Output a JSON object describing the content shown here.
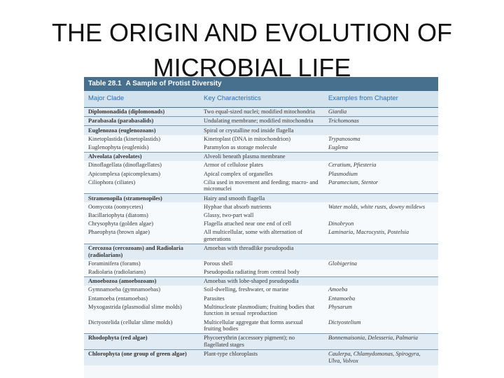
{
  "header": {
    "title_lines": [
      "THE ORIGIN AND EVOLUTION OF",
      "MICROBIAL LIFE"
    ]
  },
  "table": {
    "number": "Table 28.1",
    "caption": "A Sample of Protist Diversity",
    "columns": [
      "Major Clade",
      "Key Characteristics",
      "Examples from Chapter"
    ],
    "groups": [
      {
        "rows": [
          [
            "Diplomonadida (diplomonads)",
            "Two equal-sized nuclei; modified mitochondria",
            "Giardia"
          ]
        ]
      },
      {
        "rows": [
          [
            "Parabasala (parabasalids)",
            "Undulating membrane; modified mitochondria",
            "Trichomonas"
          ]
        ]
      },
      {
        "rows": [
          [
            "Euglenozoa (euglenozoans)",
            "Spiral or crystalline rod inside flagella"
          ],
          [
            "Kinetoplastida (kinetoplastids)",
            "Kinetoplast (DNA in mitochondrion)",
            "Trypanosoma"
          ],
          [
            "Euglenophyta (euglenids)",
            "Paramylon as storage molecule",
            "Euglena"
          ]
        ]
      },
      {
        "rows": [
          [
            "Alveolata (alveolates)",
            "Alveoli beneath plasma membrane"
          ],
          [
            "Dinoflagellata (dinoflagellates)",
            "Armor of cellulose plates",
            "Ceratium, Pfiesteria"
          ],
          [
            "Apicomplexa (apicomplexans)",
            "Apical complex of organelles",
            "Plasmodium"
          ],
          [
            "Ciliophora (ciliates)",
            "Cilia used in movement and feeding; macro- and micronuclei",
            "Paramecium, Stentor"
          ]
        ]
      },
      {
        "rows": [
          [
            "Stramenopila (stramenopiles)",
            "Hairy and smooth flagella"
          ],
          [
            "Oomycota (oomycetes)",
            "Hyphae that absorb nutrients",
            "Water molds, white rusts, downy mildews"
          ],
          [
            "Bacillariophyta (diatoms)",
            "Glassy, two-part wall"
          ],
          [
            "Chrysophyta (golden algae)",
            "Flagella attached near one end of cell",
            "Dinobryon"
          ],
          [
            "Phaeophyta (brown algae)",
            "All multicellular, some with alternation of generations",
            "Laminaria, Macrocystis, Postelsia"
          ]
        ]
      },
      {
        "rows": [
          [
            "Cercozoa (cercozoans) and Radiolaria (radiolarians)",
            "Amoebas with threadlike pseudopodia"
          ],
          [
            "Foraminifera (forams)",
            "Porous shell",
            "Globigerina"
          ],
          [
            "Radiolaria (radiolarians)",
            "Pseudopodia radiating from central body"
          ]
        ]
      },
      {
        "rows": [
          [
            "Amoebozoa (amoebozoans)",
            "Amoebas with lobe-shaped pseudopodia"
          ],
          [
            "Gymnamoeba (gymnamoebas)",
            "Soil-dwelling, freshwater, or marine",
            "Amoeba"
          ],
          [
            "Entamoeba (entamoebas)",
            "Parasites",
            "Entamoeba"
          ],
          [
            "Myxogastrida (plasmodial slime molds)",
            "Multinucleate plasmodium; fruiting bodies that function in sexual reproduction",
            "Physarum"
          ],
          [
            "Dictyostelida (cellular slime molds)",
            "Multicellular aggregate that forms asexual fruiting bodies",
            "Dictyostelium"
          ]
        ]
      },
      {
        "rows": [
          [
            "Rhodophyta (red algae)",
            "Phycoerythrin (accessory pigment); no flagellated stages",
            "Bonnemaisonia, Delesseria, Palmaria"
          ]
        ]
      },
      {
        "rows": [
          [
            "Chlorophyta (one group of green algae)",
            "Plant-type chloroplasts",
            "Caulerpa, Chlamydomonas, Spirogyra, Ulva, Volvox"
          ]
        ]
      }
    ]
  }
}
